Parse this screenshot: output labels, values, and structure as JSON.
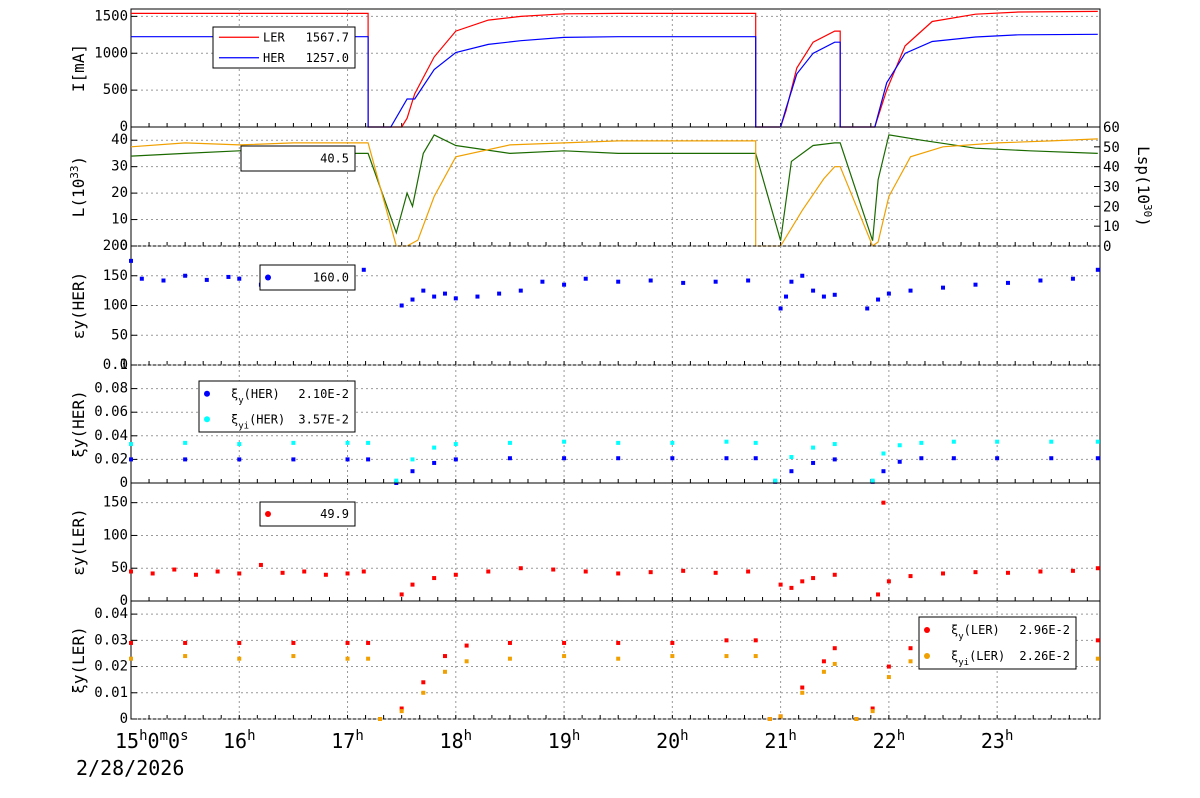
{
  "date_label": "2/28/2026",
  "time_axis": {
    "first_label": "15h0m0s",
    "labels": [
      "15h0m0s",
      "16h",
      "17h",
      "18h",
      "19h",
      "20h",
      "21h",
      "22h",
      "23h"
    ]
  },
  "colors": {
    "ler": "#ff0000",
    "her": "#0000ff",
    "lumi": "#1a6a00",
    "lsp": "#f0a000",
    "xi_her_i": "#00ffff",
    "xi_ler_i": "#f0a000"
  },
  "chart_data": [
    {
      "type": "line",
      "ylabel": "I[mA]",
      "ylim": [
        0,
        1600
      ],
      "yticks": [
        0,
        500,
        1000,
        1500
      ],
      "legend": [
        {
          "name": "LER",
          "value": "1567.7"
        },
        {
          "name": "HER",
          "value": "1257.0"
        }
      ],
      "series": [
        {
          "name": "LER",
          "color": "ler",
          "x": [
            15.0,
            17.19,
            17.19,
            17.22,
            17.5,
            17.55,
            17.62,
            17.8,
            18.0,
            18.3,
            18.6,
            19.0,
            19.5,
            20.0,
            20.77,
            20.77,
            21.0,
            21.05,
            21.15,
            21.3,
            21.5,
            21.55,
            21.55,
            21.85,
            21.87,
            21.98,
            22.15,
            22.4,
            22.8,
            23.2,
            23.93
          ],
          "y": [
            1540,
            1540,
            0,
            0,
            0,
            120,
            450,
            950,
            1300,
            1450,
            1500,
            1535,
            1540,
            1540,
            1540,
            0,
            0,
            220,
            800,
            1150,
            1300,
            1300,
            0,
            0,
            0,
            500,
            1100,
            1430,
            1530,
            1560,
            1567.7
          ]
        },
        {
          "name": "HER",
          "color": "her",
          "x": [
            15.0,
            17.19,
            17.19,
            17.22,
            17.4,
            17.55,
            17.62,
            17.8,
            18.0,
            18.3,
            18.6,
            19.0,
            19.5,
            20.0,
            20.77,
            20.77,
            21.0,
            21.05,
            21.15,
            21.3,
            21.5,
            21.55,
            21.55,
            21.85,
            21.87,
            21.98,
            22.15,
            22.4,
            22.8,
            23.2,
            23.93
          ],
          "y": [
            1225,
            1225,
            0,
            0,
            0,
            380,
            380,
            780,
            1010,
            1120,
            1170,
            1215,
            1225,
            1225,
            1225,
            0,
            0,
            250,
            720,
            1000,
            1150,
            1150,
            0,
            0,
            0,
            600,
            1000,
            1160,
            1220,
            1250,
            1257.0
          ]
        }
      ]
    },
    {
      "type": "line",
      "ylabel": "L(10^33)",
      "y2label": "Lsp(10^30)",
      "ylim": [
        0,
        45
      ],
      "yticks": [
        0,
        10,
        20,
        30,
        40
      ],
      "y2lim": [
        0,
        60
      ],
      "y2ticks": [
        0,
        10,
        20,
        30,
        40,
        50,
        60
      ],
      "legend": [
        {
          "name": "L",
          "value": "40.5"
        }
      ],
      "series": [
        {
          "name": "L",
          "color": "lumi",
          "x": [
            15.0,
            15.5,
            16.0,
            16.5,
            17.0,
            17.19,
            17.45,
            17.55,
            17.6,
            17.7,
            17.8,
            18.0,
            18.5,
            19.0,
            19.5,
            20.0,
            20.5,
            20.77,
            21.0,
            21.1,
            21.3,
            21.5,
            21.55,
            21.85,
            21.9,
            22.0,
            22.3,
            22.8,
            23.3,
            23.93
          ],
          "y": [
            34,
            35,
            36,
            36,
            35,
            35,
            5,
            20,
            15,
            35,
            42,
            38,
            35,
            36,
            35,
            35,
            35,
            35,
            2,
            32,
            38,
            39,
            39,
            2,
            25,
            42,
            40,
            37,
            36,
            35
          ]
        },
        {
          "name": "Lsp",
          "color": "lsp",
          "axis": "right",
          "x": [
            15.0,
            15.5,
            16.0,
            16.5,
            17.0,
            17.19,
            17.45,
            17.55,
            17.65,
            17.8,
            18.0,
            18.5,
            19.0,
            19.5,
            20.0,
            20.5,
            20.77,
            20.77,
            21.0,
            21.2,
            21.4,
            21.5,
            21.55,
            21.85,
            21.9,
            22.0,
            22.2,
            22.5,
            23.0,
            23.5,
            23.93
          ],
          "y": [
            50,
            52,
            51,
            52,
            52,
            52,
            0,
            0,
            3,
            25,
            45,
            51,
            52,
            53,
            53,
            53,
            53,
            0,
            0,
            18,
            34,
            40,
            40,
            0,
            2,
            25,
            45,
            50,
            52,
            53,
            54
          ]
        }
      ]
    },
    {
      "type": "scatter",
      "ylabel": "εy(HER)",
      "ylim": [
        0,
        200
      ],
      "yticks": [
        0,
        50,
        100,
        150,
        200
      ],
      "legend": [
        {
          "name": "εy(HER)",
          "value": "160.0"
        }
      ],
      "series": [
        {
          "name": "εy(HER)",
          "color": "her",
          "x": [
            15.0,
            15.1,
            15.3,
            15.5,
            15.7,
            15.9,
            16.0,
            16.2,
            16.4,
            16.6,
            16.8,
            17.0,
            17.15,
            17.5,
            17.6,
            17.7,
            17.8,
            17.9,
            18.0,
            18.2,
            18.4,
            18.6,
            18.8,
            19.0,
            19.2,
            19.5,
            19.8,
            20.1,
            20.4,
            20.7,
            21.0,
            21.05,
            21.1,
            21.2,
            21.3,
            21.4,
            21.5,
            21.8,
            21.9,
            22.0,
            22.2,
            22.5,
            22.8,
            23.1,
            23.4,
            23.7,
            23.93
          ],
          "y": [
            175,
            145,
            142,
            150,
            143,
            148,
            145,
            135,
            142,
            145,
            140,
            143,
            160,
            100,
            110,
            125,
            115,
            120,
            112,
            115,
            120,
            125,
            140,
            135,
            145,
            140,
            142,
            138,
            140,
            142,
            95,
            115,
            140,
            150,
            125,
            115,
            118,
            95,
            110,
            120,
            125,
            130,
            135,
            138,
            142,
            145,
            160
          ]
        }
      ]
    },
    {
      "type": "scatter",
      "ylabel": "ξy(HER)",
      "ylim": [
        0,
        0.1
      ],
      "yticks": [
        0,
        0.02,
        0.04,
        0.06,
        0.08,
        0.1
      ],
      "ytick_labels": [
        "0",
        "0.02",
        "0.04",
        "0.06",
        "0.08",
        "0.1"
      ],
      "legend": [
        {
          "name": "ξy(HER)",
          "value": "2.10E-2"
        },
        {
          "name": "ξyi(HER)",
          "value": "3.57E-2"
        }
      ],
      "series": [
        {
          "name": "ξy(HER)",
          "color": "her",
          "x": [
            15.0,
            15.5,
            16.0,
            16.5,
            17.0,
            17.19,
            17.45,
            17.6,
            17.8,
            18.0,
            18.5,
            19.0,
            19.5,
            20.0,
            20.5,
            20.77,
            20.95,
            21.1,
            21.3,
            21.5,
            21.85,
            21.95,
            22.1,
            22.3,
            22.6,
            23.0,
            23.5,
            23.93
          ],
          "y": [
            0.02,
            0.02,
            0.02,
            0.02,
            0.02,
            0.02,
            0.0,
            0.01,
            0.017,
            0.02,
            0.021,
            0.021,
            0.021,
            0.021,
            0.021,
            0.021,
            0.001,
            0.01,
            0.017,
            0.02,
            0.001,
            0.01,
            0.018,
            0.021,
            0.021,
            0.021,
            0.021,
            0.021
          ]
        },
        {
          "name": "ξyi(HER)",
          "color": "xi_her_i",
          "x": [
            15.0,
            15.5,
            16.0,
            16.5,
            17.0,
            17.19,
            17.45,
            17.6,
            17.8,
            18.0,
            18.5,
            19.0,
            19.5,
            20.0,
            20.5,
            20.77,
            20.95,
            21.1,
            21.3,
            21.5,
            21.85,
            21.95,
            22.1,
            22.3,
            22.6,
            23.0,
            23.5,
            23.93
          ],
          "y": [
            0.033,
            0.034,
            0.033,
            0.034,
            0.034,
            0.034,
            0.002,
            0.02,
            0.03,
            0.033,
            0.034,
            0.035,
            0.034,
            0.034,
            0.035,
            0.034,
            0.002,
            0.022,
            0.03,
            0.033,
            0.002,
            0.025,
            0.032,
            0.034,
            0.035,
            0.035,
            0.035,
            0.035
          ]
        }
      ]
    },
    {
      "type": "scatter",
      "ylabel": "εy(LER)",
      "ylim": [
        0,
        180
      ],
      "yticks": [
        0,
        50,
        100,
        150
      ],
      "legend": [
        {
          "name": "εy(LER)",
          "value": "49.9"
        }
      ],
      "series": [
        {
          "name": "εy(LER)",
          "color": "ler",
          "x": [
            15.0,
            15.2,
            15.4,
            15.6,
            15.8,
            16.0,
            16.2,
            16.4,
            16.6,
            16.8,
            17.0,
            17.15,
            17.5,
            17.6,
            17.8,
            18.0,
            18.3,
            18.6,
            18.9,
            19.2,
            19.5,
            19.8,
            20.1,
            20.4,
            20.7,
            21.0,
            21.1,
            21.2,
            21.3,
            21.5,
            21.9,
            21.95,
            22.0,
            22.2,
            22.5,
            22.8,
            23.1,
            23.4,
            23.7,
            23.93
          ],
          "y": [
            45,
            42,
            48,
            40,
            45,
            42,
            55,
            43,
            45,
            40,
            42,
            45,
            10,
            25,
            35,
            40,
            45,
            50,
            48,
            45,
            42,
            44,
            46,
            43,
            45,
            25,
            20,
            30,
            35,
            40,
            10,
            150,
            30,
            38,
            42,
            44,
            43,
            45,
            46,
            50
          ]
        }
      ]
    },
    {
      "type": "scatter",
      "ylabel": "ξy(LER)",
      "ylim": [
        0,
        0.045
      ],
      "yticks": [
        0,
        0.01,
        0.02,
        0.03,
        0.04
      ],
      "ytick_labels": [
        "0",
        "0.01",
        "0.02",
        "0.03",
        "0.04"
      ],
      "legend": [
        {
          "name": "ξy(LER)",
          "value": "2.96E-2"
        },
        {
          "name": "ξyi(LER)",
          "value": "2.26E-2"
        }
      ],
      "series": [
        {
          "name": "ξy(LER)",
          "color": "ler",
          "x": [
            15.0,
            15.5,
            16.0,
            16.5,
            17.0,
            17.19,
            17.3,
            17.5,
            17.7,
            17.9,
            18.1,
            18.5,
            19.0,
            19.5,
            20.0,
            20.5,
            20.77,
            20.9,
            21.0,
            21.2,
            21.4,
            21.5,
            21.7,
            21.85,
            22.0,
            22.2,
            22.5,
            23.0,
            23.5,
            23.93
          ],
          "y": [
            0.029,
            0.029,
            0.029,
            0.029,
            0.029,
            0.029,
            0.0,
            0.004,
            0.014,
            0.024,
            0.028,
            0.029,
            0.029,
            0.029,
            0.029,
            0.03,
            0.03,
            0.0,
            0.001,
            0.012,
            0.022,
            0.027,
            0.0,
            0.004,
            0.02,
            0.027,
            0.029,
            0.03,
            0.03,
            0.03
          ]
        },
        {
          "name": "ξyi(LER)",
          "color": "xi_ler_i",
          "x": [
            15.0,
            15.5,
            16.0,
            16.5,
            17.0,
            17.19,
            17.3,
            17.5,
            17.7,
            17.9,
            18.1,
            18.5,
            19.0,
            19.5,
            20.0,
            20.5,
            20.77,
            20.9,
            21.0,
            21.2,
            21.4,
            21.5,
            21.7,
            21.85,
            22.0,
            22.2,
            22.5,
            23.0,
            23.5,
            23.93
          ],
          "y": [
            0.023,
            0.024,
            0.023,
            0.024,
            0.023,
            0.023,
            0.0,
            0.003,
            0.01,
            0.018,
            0.022,
            0.023,
            0.024,
            0.023,
            0.024,
            0.024,
            0.024,
            0.0,
            0.001,
            0.01,
            0.018,
            0.021,
            0.0,
            0.003,
            0.016,
            0.022,
            0.023,
            0.024,
            0.024,
            0.023
          ]
        }
      ]
    }
  ]
}
